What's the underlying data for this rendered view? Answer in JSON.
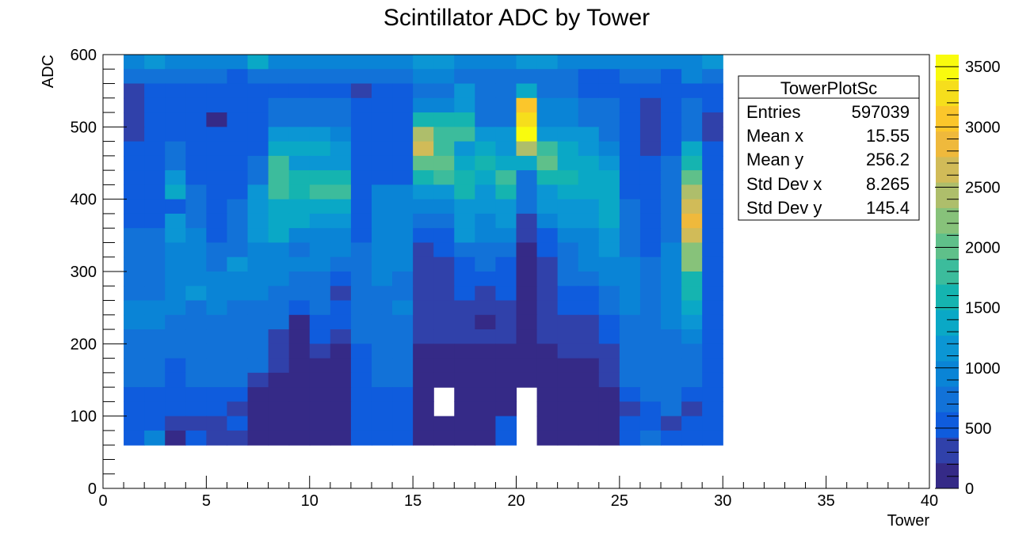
{
  "chart_data": {
    "type": "heatmap",
    "title": "Scintillator ADC by Tower",
    "xlabel": "Tower",
    "ylabel": "ADC",
    "xlim": [
      0,
      40
    ],
    "ylim": [
      0,
      600
    ],
    "x_tick_labels": [
      "0",
      "5",
      "10",
      "15",
      "20",
      "25",
      "30",
      "35",
      "40"
    ],
    "y_tick_labels": [
      "0",
      "100",
      "200",
      "300",
      "400",
      "500",
      "600"
    ],
    "x_bin_edges_start": 1,
    "x_bin_width": 1,
    "y_bin_width": 20,
    "zlim": [
      0,
      3600
    ],
    "z_tick_labels": [
      "0",
      "500",
      "1000",
      "1500",
      "2000",
      "2500",
      "3000",
      "3500"
    ],
    "palette": [
      "#352a87",
      "#3041aa",
      "#0f5cdd",
      "#1272d8",
      "#0a84d6",
      "#0b96d4",
      "#0aa8c6",
      "#15b4b0",
      "#3cbc9c",
      "#5fc08a",
      "#87c27a",
      "#aebe6b",
      "#d1bb58",
      "#efb93c",
      "#fbc62b",
      "#f6de1c",
      "#f9fb0e"
    ],
    "stats_box": {
      "title": "TowerPlotSc",
      "rows": [
        {
          "label": "Entries",
          "value": "597039"
        },
        {
          "label": "Mean x",
          "value": "15.55"
        },
        {
          "label": "Mean y",
          "value": "256.2"
        },
        {
          "label": "Std Dev x",
          "value": "8.265"
        },
        {
          "label": "Std Dev y",
          "value": "145.4"
        }
      ]
    },
    "z": [
      [
        900,
        1200,
        950,
        900,
        900,
        850,
        1350,
        1000,
        1000,
        1000,
        950,
        900,
        900,
        900,
        1100,
        1100,
        1000,
        950,
        900,
        1100,
        1100,
        1000,
        1000,
        950,
        950,
        950,
        900,
        900,
        1250
      ],
      [
        700,
        700,
        800,
        800,
        800,
        600,
        700,
        700,
        700,
        700,
        700,
        700,
        750,
        650,
        900,
        900,
        800,
        700,
        650,
        700,
        700,
        700,
        600,
        600,
        700,
        700,
        600,
        900,
        700
      ],
      [
        250,
        500,
        500,
        500,
        500,
        500,
        500,
        500,
        500,
        500,
        500,
        400,
        550,
        550,
        800,
        800,
        1200,
        800,
        800,
        1400,
        800,
        800,
        500,
        500,
        600,
        600,
        600,
        500,
        500
      ],
      [
        300,
        500,
        600,
        500,
        500,
        500,
        500,
        700,
        700,
        700,
        700,
        500,
        500,
        500,
        1050,
        1050,
        1100,
        800,
        800,
        3000,
        900,
        900,
        700,
        700,
        500,
        300,
        500,
        700,
        600
      ],
      [
        300,
        500,
        600,
        500,
        200,
        500,
        500,
        700,
        700,
        700,
        700,
        500,
        500,
        500,
        1500,
        1500,
        1500,
        800,
        800,
        3300,
        1000,
        1000,
        800,
        800,
        500,
        300,
        500,
        700,
        300
      ],
      [
        300,
        500,
        600,
        500,
        500,
        500,
        500,
        1100,
        1100,
        1100,
        1000,
        500,
        500,
        500,
        2400,
        1800,
        1800,
        1200,
        1200,
        3400,
        1100,
        1100,
        1100,
        800,
        500,
        300,
        500,
        800,
        300
      ],
      [
        500,
        500,
        800,
        500,
        500,
        500,
        500,
        1300,
        1300,
        1300,
        1200,
        500,
        500,
        500,
        2600,
        1700,
        1100,
        1400,
        1200,
        2500,
        1900,
        1300,
        1200,
        1000,
        500,
        300,
        500,
        1400,
        500
      ],
      [
        500,
        500,
        800,
        500,
        500,
        500,
        800,
        1800,
        1200,
        1200,
        1200,
        500,
        600,
        600,
        2100,
        2100,
        1300,
        1500,
        1400,
        1400,
        2100,
        1300,
        1300,
        1100,
        500,
        500,
        700,
        1600,
        600
      ],
      [
        500,
        500,
        1100,
        500,
        500,
        500,
        800,
        1800,
        1600,
        1600,
        1600,
        500,
        600,
        600,
        1600,
        1900,
        1600,
        1300,
        1700,
        700,
        1600,
        1600,
        1400,
        1300,
        500,
        500,
        800,
        2000,
        600
      ],
      [
        500,
        500,
        1300,
        800,
        500,
        500,
        1100,
        1800,
        1600,
        1700,
        1700,
        500,
        900,
        900,
        1100,
        1100,
        1500,
        1200,
        1500,
        700,
        1200,
        1300,
        1300,
        1400,
        600,
        500,
        800,
        2400,
        600
      ],
      [
        500,
        500,
        500,
        800,
        500,
        700,
        1100,
        1300,
        1300,
        1300,
        1300,
        500,
        900,
        900,
        1000,
        1000,
        1100,
        1200,
        1100,
        700,
        1200,
        1100,
        1200,
        1400,
        700,
        500,
        800,
        2600,
        600
      ],
      [
        600,
        600,
        1200,
        800,
        500,
        700,
        1200,
        1300,
        1300,
        1200,
        1200,
        500,
        900,
        900,
        800,
        800,
        1100,
        1000,
        1100,
        400,
        1000,
        1200,
        1200,
        1400,
        700,
        500,
        800,
        2800,
        600
      ],
      [
        700,
        700,
        1100,
        1000,
        500,
        700,
        1200,
        1300,
        1000,
        1000,
        1000,
        500,
        900,
        900,
        500,
        600,
        1200,
        1000,
        1000,
        400,
        600,
        900,
        1000,
        1200,
        800,
        600,
        800,
        2700,
        600
      ],
      [
        700,
        700,
        1000,
        1000,
        700,
        700,
        1000,
        1000,
        800,
        900,
        900,
        700,
        900,
        900,
        300,
        500,
        800,
        700,
        700,
        200,
        600,
        800,
        900,
        1100,
        800,
        600,
        900,
        2300,
        600
      ],
      [
        700,
        700,
        900,
        1000,
        700,
        1100,
        1000,
        1000,
        900,
        900,
        700,
        700,
        900,
        900,
        300,
        300,
        600,
        700,
        500,
        200,
        300,
        800,
        900,
        900,
        900,
        700,
        900,
        2200,
        600
      ],
      [
        800,
        800,
        1000,
        1000,
        900,
        1000,
        900,
        900,
        800,
        800,
        600,
        800,
        900,
        800,
        300,
        300,
        600,
        600,
        600,
        200,
        300,
        700,
        700,
        900,
        1000,
        800,
        1000,
        1600,
        600
      ],
      [
        800,
        800,
        1000,
        1100,
        900,
        1000,
        900,
        800,
        700,
        800,
        400,
        800,
        800,
        800,
        300,
        300,
        500,
        400,
        500,
        200,
        300,
        500,
        500,
        800,
        1000,
        800,
        1000,
        1500,
        600
      ],
      [
        1000,
        1000,
        900,
        800,
        900,
        800,
        800,
        700,
        500,
        700,
        500,
        800,
        800,
        900,
        300,
        300,
        300,
        300,
        400,
        200,
        300,
        500,
        500,
        700,
        900,
        800,
        900,
        1300,
        600
      ],
      [
        900,
        900,
        800,
        800,
        800,
        800,
        800,
        700,
        200,
        600,
        500,
        800,
        800,
        800,
        300,
        300,
        300,
        200,
        300,
        200,
        300,
        400,
        400,
        500,
        800,
        800,
        900,
        1100,
        600
      ],
      [
        800,
        800,
        700,
        800,
        800,
        800,
        700,
        300,
        200,
        500,
        300,
        700,
        700,
        700,
        300,
        300,
        300,
        300,
        300,
        200,
        300,
        400,
        400,
        500,
        800,
        800,
        800,
        900,
        600
      ],
      [
        700,
        800,
        700,
        800,
        800,
        800,
        700,
        300,
        200,
        300,
        200,
        600,
        700,
        700,
        200,
        200,
        200,
        200,
        200,
        200,
        200,
        300,
        300,
        300,
        700,
        800,
        800,
        800,
        600
      ],
      [
        800,
        800,
        600,
        800,
        800,
        800,
        700,
        300,
        200,
        200,
        200,
        600,
        700,
        700,
        200,
        200,
        200,
        200,
        200,
        200,
        200,
        200,
        200,
        300,
        700,
        700,
        700,
        800,
        600
      ],
      [
        800,
        800,
        600,
        800,
        800,
        800,
        400,
        200,
        200,
        200,
        200,
        600,
        700,
        700,
        200,
        200,
        200,
        200,
        200,
        200,
        200,
        200,
        200,
        300,
        700,
        700,
        700,
        700,
        600
      ],
      [
        600,
        600,
        500,
        600,
        600,
        600,
        200,
        200,
        200,
        200,
        200,
        600,
        600,
        600,
        200,
        -1,
        200,
        200,
        200,
        -1,
        200,
        200,
        200,
        200,
        600,
        700,
        700,
        600,
        600
      ],
      [
        500,
        500,
        600,
        600,
        600,
        400,
        200,
        200,
        200,
        200,
        200,
        600,
        600,
        500,
        200,
        -1,
        200,
        200,
        200,
        -1,
        200,
        200,
        200,
        200,
        400,
        600,
        700,
        400,
        600
      ],
      [
        500,
        500,
        300,
        400,
        400,
        500,
        200,
        200,
        200,
        200,
        200,
        600,
        500,
        500,
        200,
        200,
        200,
        200,
        600,
        -1,
        200,
        200,
        200,
        200,
        500,
        600,
        300,
        500,
        500
      ],
      [
        600,
        900,
        200,
        500,
        400,
        400,
        200,
        200,
        200,
        200,
        200,
        600,
        500,
        500,
        200,
        200,
        200,
        200,
        600,
        -1,
        200,
        200,
        200,
        200,
        500,
        700,
        500,
        500,
        600
      ]
    ],
    "z_rows_note_skip": true
  }
}
